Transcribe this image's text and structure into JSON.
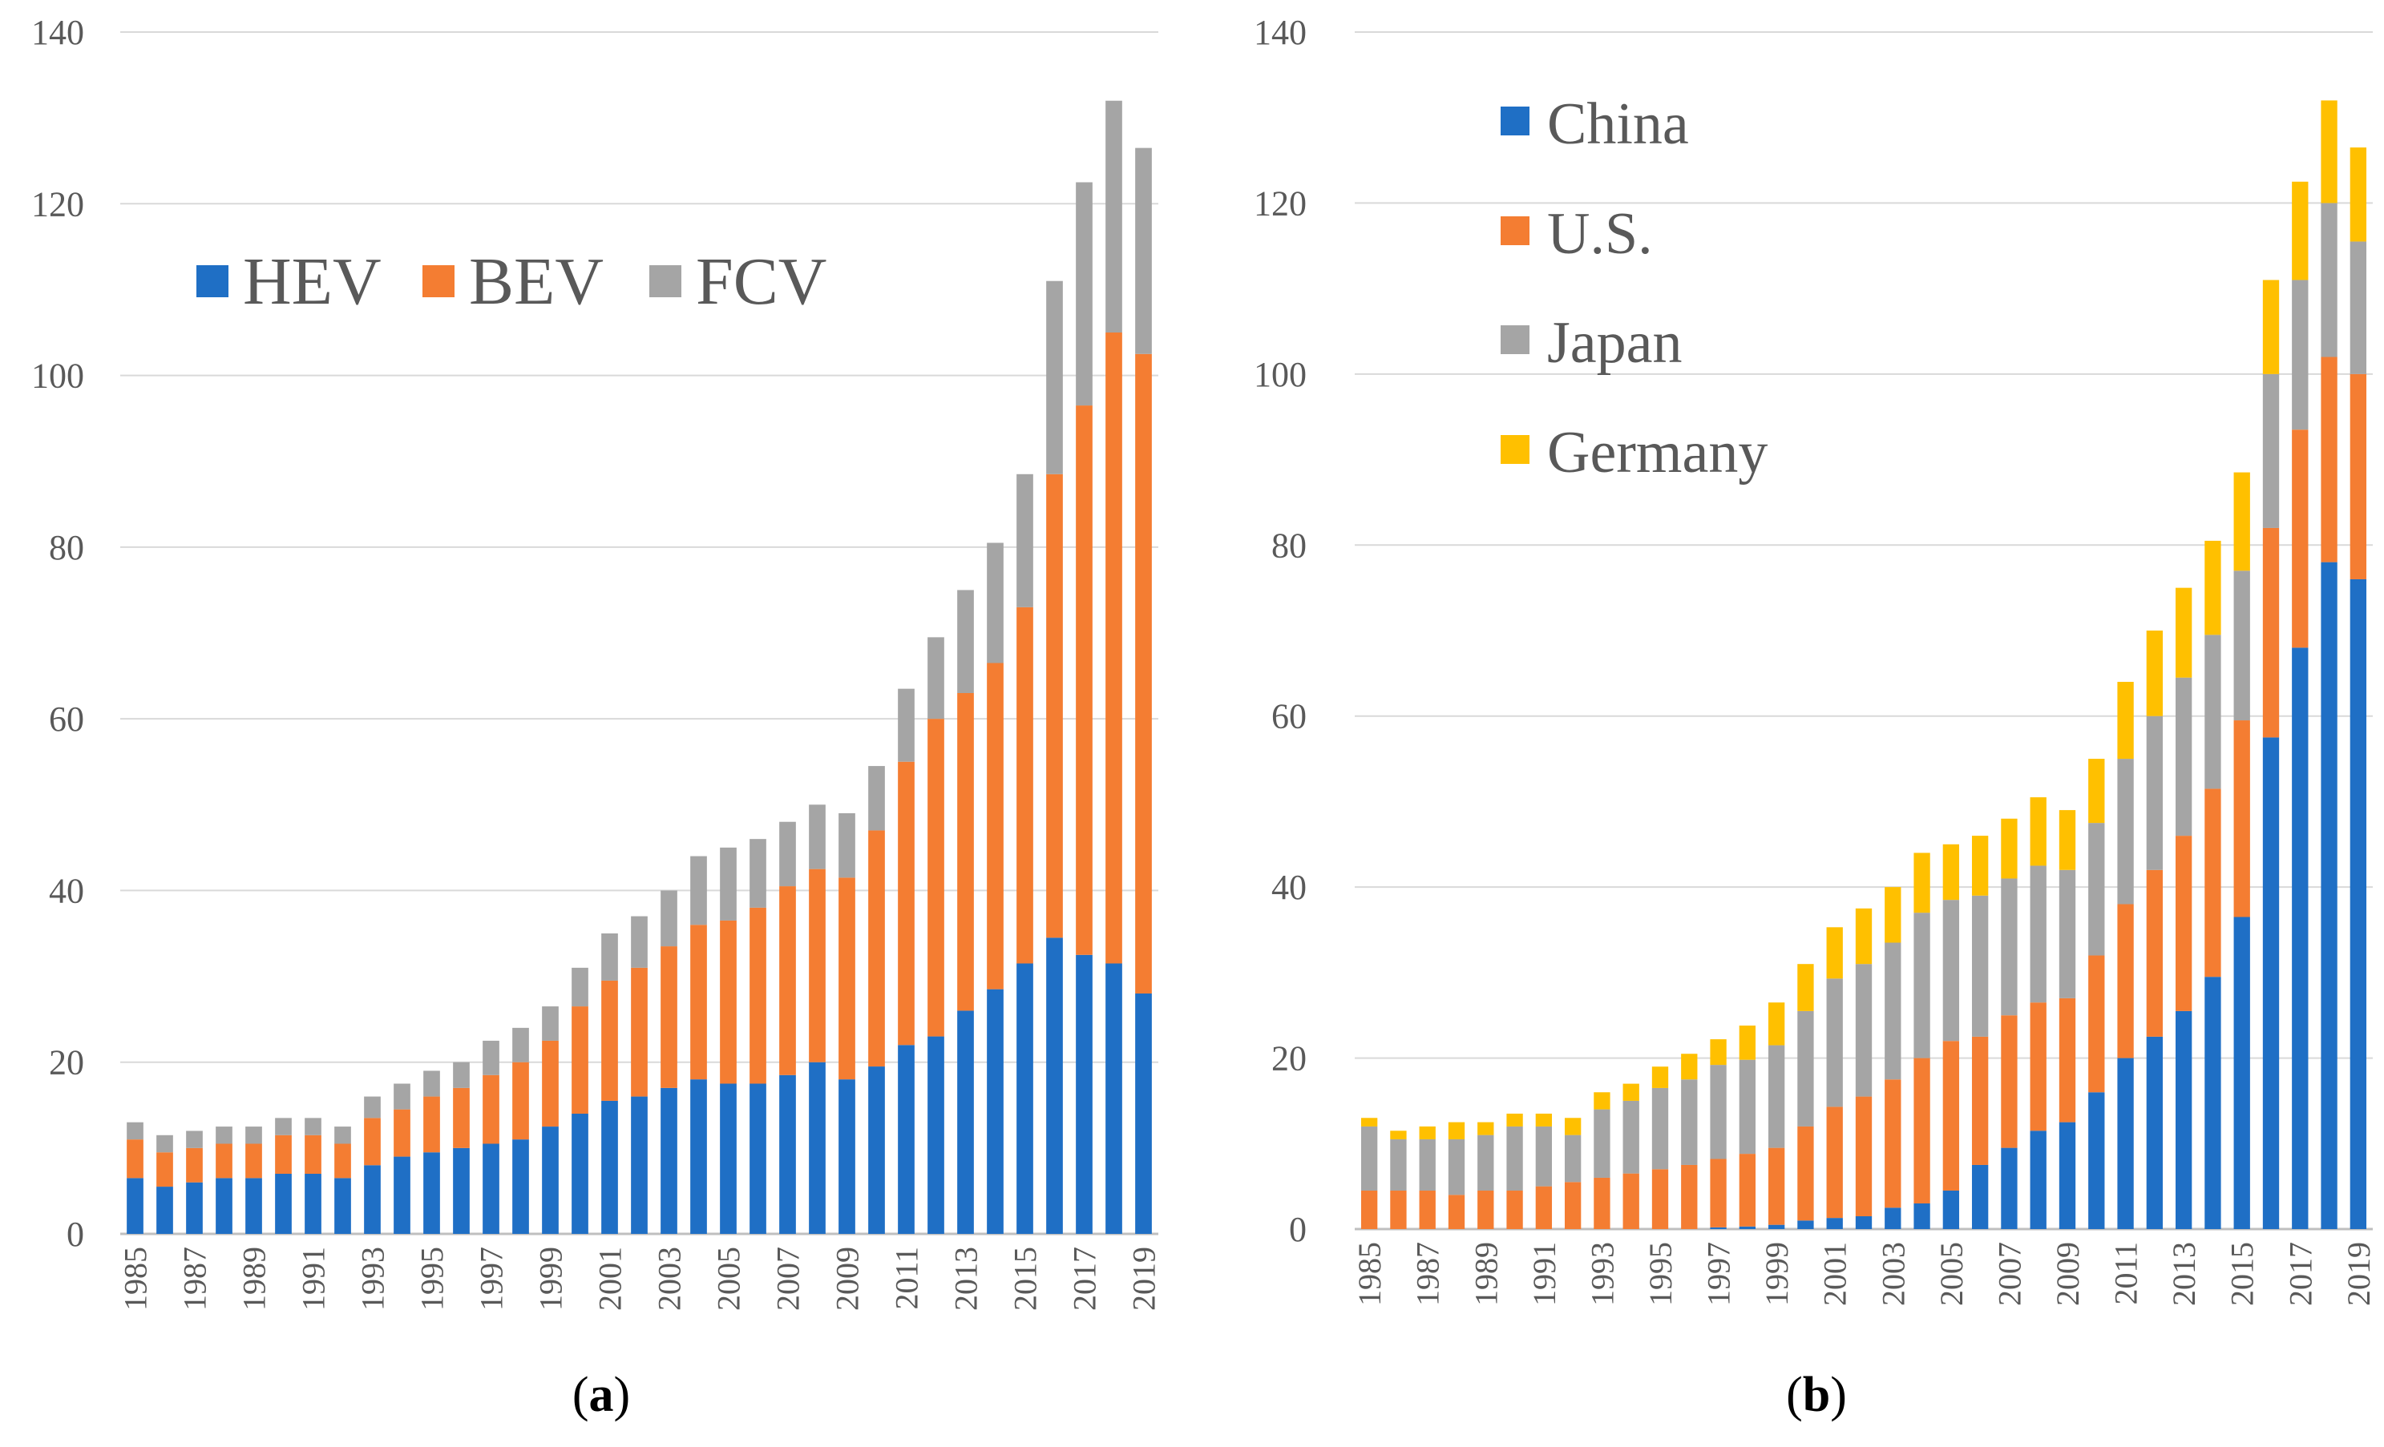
{
  "chart_data": [
    {
      "type": "bar",
      "stacked": true,
      "panel_label": "a",
      "x": [
        1985,
        1986,
        1987,
        1988,
        1989,
        1990,
        1991,
        1992,
        1993,
        1994,
        1995,
        1996,
        1997,
        1998,
        1999,
        2000,
        2001,
        2002,
        2003,
        2004,
        2005,
        2006,
        2007,
        2008,
        2009,
        2010,
        2011,
        2012,
        2013,
        2014,
        2015,
        2016,
        2017,
        2018,
        2019
      ],
      "x_tick_labels": [
        "1985",
        "1987",
        "1989",
        "1991",
        "1993",
        "1995",
        "1997",
        "1999",
        "2001",
        "2003",
        "2005",
        "2007",
        "2009",
        "2011",
        "2013",
        "2015",
        "2017",
        "2019"
      ],
      "ylim": [
        0,
        140
      ],
      "y_ticks": [
        0,
        20,
        40,
        60,
        80,
        100,
        120,
        140
      ],
      "grid": true,
      "legend_position": "top-left",
      "series": [
        {
          "name": "HEV",
          "color": "#1f6fc5",
          "values": [
            6.5,
            5.5,
            6,
            6.5,
            6.5,
            7,
            7,
            6.5,
            8,
            9,
            9.5,
            10,
            10.5,
            11,
            12.5,
            14,
            15.5,
            16,
            17,
            18,
            17.5,
            17.5,
            18.5,
            20,
            18,
            19.5,
            22,
            23,
            26,
            28.5,
            31.5,
            34.5,
            32.5,
            31.5,
            28
          ]
        },
        {
          "name": "BEV",
          "color": "#f47d32",
          "values": [
            4.5,
            4,
            4,
            4,
            4,
            4.5,
            4.5,
            4,
            5.5,
            5.5,
            6.5,
            7,
            8,
            9,
            10,
            12.5,
            14,
            15,
            16.5,
            18,
            19,
            20.5,
            22,
            22.5,
            23.5,
            27.5,
            33,
            37,
            37,
            38,
            41.5,
            54,
            64,
            73.5,
            74.5
          ]
        },
        {
          "name": "FCV",
          "color": "#a5a5a5",
          "values": [
            2,
            2,
            2,
            2,
            2,
            2,
            2,
            2,
            2.5,
            3,
            3,
            3,
            4,
            4,
            4,
            4.5,
            5.5,
            6,
            6.5,
            8,
            8.5,
            8,
            7.5,
            7.5,
            7.5,
            7.5,
            8.5,
            9.5,
            12,
            14,
            15.5,
            22.5,
            26,
            27,
            24
          ]
        }
      ]
    },
    {
      "type": "bar",
      "stacked": true,
      "panel_label": "b",
      "x": [
        1985,
        1986,
        1987,
        1988,
        1989,
        1990,
        1991,
        1992,
        1993,
        1994,
        1995,
        1996,
        1997,
        1998,
        1999,
        2000,
        2001,
        2002,
        2003,
        2004,
        2005,
        2006,
        2007,
        2008,
        2009,
        2010,
        2011,
        2012,
        2013,
        2014,
        2015,
        2016,
        2017,
        2018,
        2019
      ],
      "x_tick_labels": [
        "1985",
        "1987",
        "1989",
        "1991",
        "1993",
        "1995",
        "1997",
        "1999",
        "2001",
        "2003",
        "2005",
        "2007",
        "2009",
        "2011",
        "2013",
        "2015",
        "2017",
        "2019"
      ],
      "ylim": [
        0,
        140
      ],
      "y_ticks": [
        0,
        20,
        40,
        60,
        80,
        100,
        120,
        140
      ],
      "grid": true,
      "legend_position": "top-left",
      "series": [
        {
          "name": "China",
          "color": "#1f6fc5",
          "values": [
            0,
            0,
            0,
            0,
            0,
            0,
            0,
            0,
            0,
            0,
            0,
            0,
            0.2,
            0.3,
            0.5,
            1,
            1.3,
            1.5,
            2.5,
            3,
            4.5,
            7.5,
            9.5,
            11.5,
            12.5,
            16,
            20,
            22.5,
            25.5,
            29.5,
            36.5,
            57.5,
            68,
            78,
            76
          ]
        },
        {
          "name": "U.S.",
          "color": "#f47d32",
          "values": [
            4.5,
            4.5,
            4.5,
            4,
            4.5,
            4.5,
            5,
            5.5,
            6,
            6.5,
            7,
            7.5,
            8,
            8.5,
            9,
            11,
            13,
            14,
            15,
            17,
            17.5,
            15,
            15.5,
            15,
            14.5,
            16,
            18,
            19.5,
            20.5,
            22,
            23,
            24.5,
            25.5,
            24,
            24
          ]
        },
        {
          "name": "Japan",
          "color": "#a5a5a5",
          "values": [
            7.5,
            6,
            6,
            6.5,
            6.5,
            7.5,
            7,
            5.5,
            8,
            8.5,
            9.5,
            10,
            11,
            11,
            12,
            13.5,
            15,
            15.5,
            16,
            17,
            16.5,
            16.5,
            16,
            16,
            15,
            15.5,
            17,
            18,
            18.5,
            18,
            17.5,
            18,
            17.5,
            18,
            15.5
          ]
        },
        {
          "name": "Germany",
          "color": "#ffc000",
          "values": [
            1,
            1,
            1.5,
            2,
            1.5,
            1.5,
            1.5,
            2,
            2,
            2,
            2.5,
            3,
            3,
            4,
            5,
            5.5,
            6,
            6.5,
            6.5,
            7,
            6.5,
            7,
            7,
            8,
            7,
            7.5,
            9,
            10,
            10.5,
            11,
            11.5,
            11,
            11.5,
            12,
            11
          ]
        }
      ]
    }
  ],
  "panels": [
    {
      "label_open": "(",
      "label_letter": "a",
      "label_close": ")"
    },
    {
      "label_open": "(",
      "label_letter": "b",
      "label_close": ")"
    }
  ]
}
